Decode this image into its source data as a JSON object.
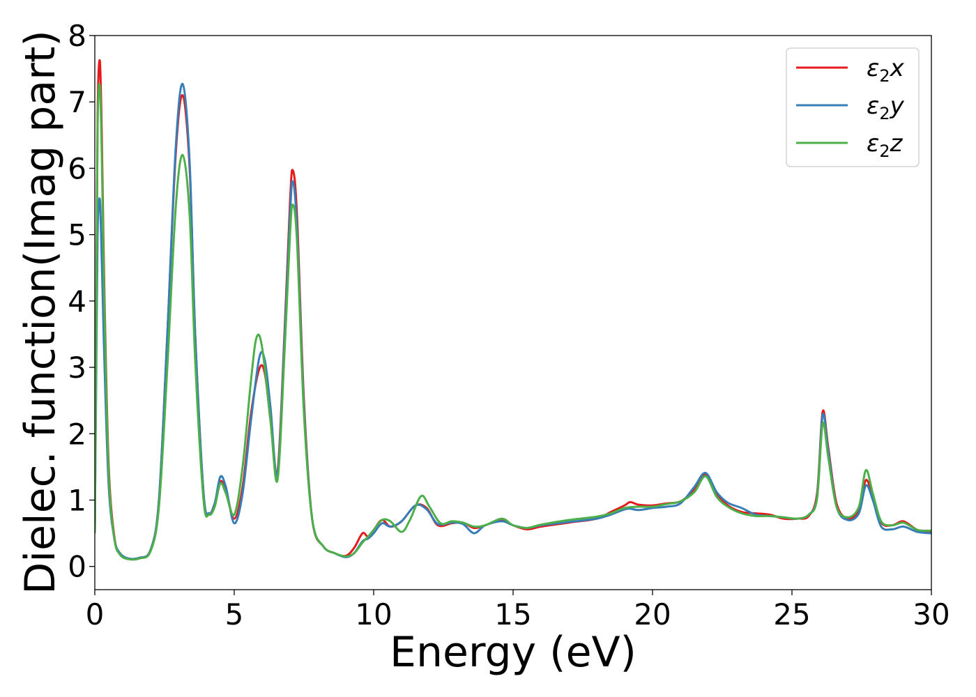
{
  "chart_data": {
    "type": "line",
    "title": "",
    "xlabel": "Energy (eV)",
    "ylabel": "Dielec. function(Imag part)",
    "xlim": [
      0,
      30
    ],
    "ylim": [
      -0.35,
      8
    ],
    "xticks": [
      0,
      5,
      10,
      15,
      20,
      25,
      30
    ],
    "yticks": [
      0,
      1,
      2,
      3,
      4,
      5,
      6,
      7,
      8
    ],
    "grid": false,
    "legend_position": "top-right",
    "series": [
      {
        "name": "ε₂x",
        "legend": {
          "base": "ε",
          "sub": "2",
          "comp": "x"
        },
        "color": "#e41a1c",
        "x": [
          0,
          0.05,
          0.1,
          0.18,
          0.25,
          0.35,
          0.5,
          0.7,
          0.9,
          1.2,
          1.6,
          2.0,
          2.3,
          2.6,
          2.9,
          3.15,
          3.4,
          3.6,
          3.9,
          4.1,
          4.3,
          4.5,
          4.7,
          5.0,
          5.3,
          5.6,
          5.9,
          6.1,
          6.3,
          6.55,
          6.8,
          7.0,
          7.1,
          7.25,
          7.5,
          7.8,
          8.2,
          8.6,
          9.0,
          9.3,
          9.6,
          9.8,
          10.0,
          10.3,
          10.6,
          11.0,
          11.5,
          11.9,
          12.3,
          12.8,
          13.2,
          13.6,
          14.0,
          14.6,
          15.0,
          15.5,
          16.0,
          17.0,
          18.0,
          18.5,
          19.0,
          19.2,
          19.5,
          20.0,
          20.5,
          21.0,
          21.5,
          21.9,
          22.3,
          22.7,
          23.2,
          23.7,
          24.2,
          24.7,
          25.2,
          25.6,
          25.9,
          26.1,
          26.3,
          26.6,
          27.0,
          27.4,
          27.65,
          27.9,
          28.2,
          28.6,
          29.0,
          29.5,
          30.0
        ],
        "values": [
          0.5,
          3.5,
          6.8,
          7.62,
          6.5,
          4.0,
          1.5,
          0.45,
          0.2,
          0.12,
          0.13,
          0.25,
          1.0,
          3.5,
          6.2,
          7.1,
          6.0,
          3.5,
          1.1,
          0.8,
          0.95,
          1.28,
          1.15,
          0.72,
          1.2,
          2.3,
          2.98,
          2.9,
          2.2,
          1.42,
          3.5,
          5.5,
          5.97,
          5.3,
          2.5,
          0.7,
          0.3,
          0.2,
          0.16,
          0.28,
          0.5,
          0.45,
          0.55,
          0.7,
          0.6,
          0.68,
          0.92,
          0.88,
          0.62,
          0.65,
          0.66,
          0.58,
          0.62,
          0.7,
          0.62,
          0.56,
          0.6,
          0.66,
          0.72,
          0.82,
          0.92,
          0.97,
          0.93,
          0.92,
          0.95,
          0.98,
          1.15,
          1.38,
          1.1,
          0.92,
          0.82,
          0.8,
          0.78,
          0.72,
          0.72,
          0.76,
          1.1,
          2.33,
          1.8,
          0.95,
          0.72,
          0.85,
          1.3,
          1.05,
          0.66,
          0.62,
          0.68,
          0.55,
          0.52
        ]
      },
      {
        "name": "ε₂y",
        "legend": {
          "base": "ε",
          "sub": "2",
          "comp": "y"
        },
        "color": "#377eb8",
        "x": [
          0,
          0.05,
          0.1,
          0.18,
          0.25,
          0.35,
          0.5,
          0.7,
          0.9,
          1.2,
          1.6,
          2.0,
          2.3,
          2.6,
          2.9,
          3.15,
          3.4,
          3.6,
          3.9,
          4.1,
          4.3,
          4.5,
          4.7,
          5.0,
          5.3,
          5.6,
          5.9,
          6.1,
          6.3,
          6.55,
          6.8,
          7.0,
          7.1,
          7.25,
          7.5,
          7.8,
          8.2,
          8.6,
          9.0,
          9.3,
          9.6,
          9.8,
          10.0,
          10.3,
          10.6,
          11.0,
          11.5,
          11.9,
          12.3,
          12.8,
          13.2,
          13.6,
          14.0,
          14.6,
          15.0,
          15.5,
          16.0,
          17.0,
          18.0,
          18.5,
          19.0,
          19.2,
          19.5,
          20.0,
          20.5,
          21.0,
          21.5,
          21.9,
          22.3,
          22.7,
          23.2,
          23.7,
          24.2,
          24.7,
          25.2,
          25.6,
          25.9,
          26.1,
          26.3,
          26.6,
          27.0,
          27.4,
          27.65,
          27.9,
          28.2,
          28.6,
          29.0,
          29.5,
          30.0
        ],
        "values": [
          0.5,
          2.8,
          5.0,
          5.53,
          4.6,
          3.0,
          1.2,
          0.42,
          0.2,
          0.12,
          0.13,
          0.25,
          1.0,
          3.5,
          6.3,
          7.27,
          6.1,
          3.5,
          1.1,
          0.8,
          0.95,
          1.35,
          1.2,
          0.65,
          1.1,
          2.2,
          3.15,
          3.1,
          2.4,
          1.38,
          3.4,
          5.3,
          5.8,
          5.1,
          2.4,
          0.7,
          0.3,
          0.2,
          0.14,
          0.2,
          0.38,
          0.42,
          0.5,
          0.65,
          0.6,
          0.68,
          0.92,
          0.86,
          0.64,
          0.66,
          0.64,
          0.5,
          0.62,
          0.68,
          0.62,
          0.58,
          0.62,
          0.67,
          0.72,
          0.78,
          0.86,
          0.87,
          0.85,
          0.88,
          0.9,
          0.95,
          1.2,
          1.41,
          1.12,
          0.96,
          0.88,
          0.78,
          0.76,
          0.74,
          0.72,
          0.78,
          1.05,
          2.28,
          1.75,
          0.9,
          0.7,
          0.8,
          1.22,
          1.0,
          0.6,
          0.56,
          0.6,
          0.52,
          0.5
        ]
      },
      {
        "name": "ε₂z",
        "legend": {
          "base": "ε",
          "sub": "2",
          "comp": "z"
        },
        "color": "#4daf4a",
        "x": [
          0,
          0.05,
          0.1,
          0.18,
          0.25,
          0.35,
          0.5,
          0.7,
          0.9,
          1.2,
          1.6,
          2.0,
          2.3,
          2.6,
          2.9,
          3.15,
          3.4,
          3.6,
          3.9,
          4.1,
          4.3,
          4.5,
          4.7,
          5.0,
          5.3,
          5.6,
          5.8,
          6.0,
          6.3,
          6.55,
          6.8,
          7.0,
          7.1,
          7.25,
          7.5,
          7.8,
          8.2,
          8.6,
          9.0,
          9.3,
          9.6,
          9.8,
          10.0,
          10.3,
          10.6,
          11.0,
          11.3,
          11.7,
          12.0,
          12.4,
          12.8,
          13.2,
          13.6,
          14.0,
          14.6,
          15.0,
          15.5,
          16.0,
          17.0,
          18.0,
          18.5,
          19.0,
          19.5,
          20.0,
          20.5,
          21.0,
          21.5,
          21.9,
          22.3,
          22.7,
          23.2,
          23.7,
          24.2,
          24.7,
          25.2,
          25.6,
          25.9,
          26.1,
          26.3,
          26.6,
          27.0,
          27.4,
          27.65,
          27.9,
          28.2,
          28.6,
          29.0,
          29.5,
          30.0
        ],
        "values": [
          0.5,
          3.4,
          6.6,
          7.25,
          6.2,
          3.8,
          1.4,
          0.42,
          0.18,
          0.11,
          0.12,
          0.23,
          0.9,
          3.0,
          5.4,
          6.2,
          5.3,
          3.1,
          1.0,
          0.78,
          0.9,
          1.25,
          1.1,
          0.78,
          1.5,
          2.8,
          3.45,
          3.3,
          2.2,
          1.3,
          3.2,
          5.0,
          5.45,
          4.9,
          2.3,
          0.7,
          0.3,
          0.2,
          0.15,
          0.2,
          0.36,
          0.45,
          0.55,
          0.7,
          0.68,
          0.52,
          0.7,
          1.06,
          0.9,
          0.65,
          0.68,
          0.66,
          0.6,
          0.62,
          0.72,
          0.62,
          0.58,
          0.63,
          0.7,
          0.75,
          0.8,
          0.88,
          0.9,
          0.9,
          0.94,
          0.98,
          1.12,
          1.36,
          1.05,
          0.9,
          0.8,
          0.76,
          0.76,
          0.74,
          0.72,
          0.78,
          1.02,
          2.15,
          1.65,
          0.9,
          0.74,
          0.9,
          1.45,
          1.1,
          0.68,
          0.62,
          0.66,
          0.55,
          0.54
        ]
      }
    ]
  }
}
